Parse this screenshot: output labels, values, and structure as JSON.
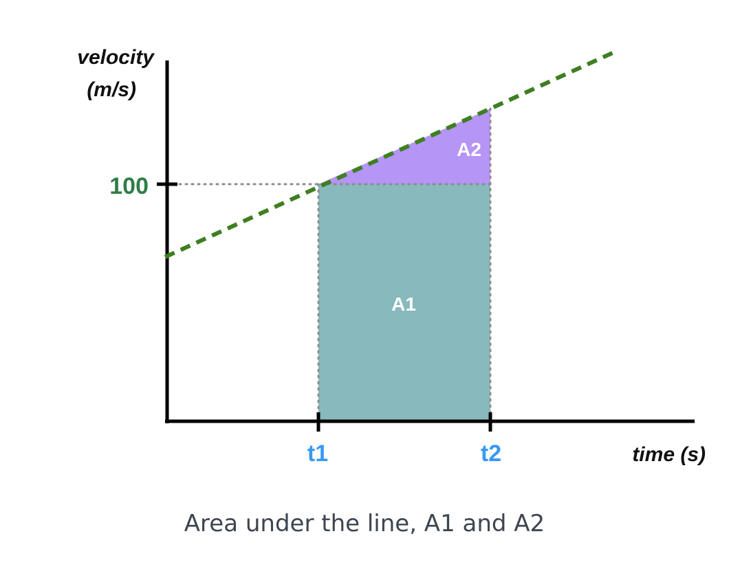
{
  "diagram": {
    "y_axis_label_line1": "velocity",
    "y_axis_label_line2": "(m/s)",
    "x_axis_label": "time (s)",
    "y_tick_label": "100",
    "x_tick_labels": [
      "t1",
      "t2"
    ],
    "regions": [
      {
        "label": "A1",
        "shape": "rectangle",
        "color": "#88b9bc"
      },
      {
        "label": "A2",
        "shape": "triangle",
        "color": "#b595f5"
      }
    ],
    "line": {
      "style": "dashed",
      "color": "#3e7f22"
    },
    "guide_line_style": "dotted",
    "y_tick_color": "#2e7d47",
    "x_tick_color": "#3899f3"
  },
  "caption": "Area under the line, A1 and A2"
}
